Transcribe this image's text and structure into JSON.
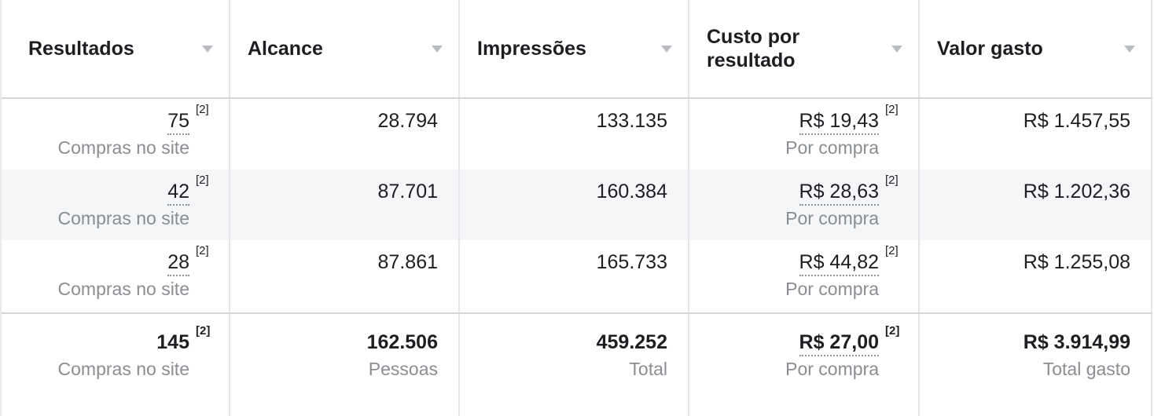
{
  "colors": {
    "text_primary": "#1c1e21",
    "text_secondary": "#8a8d91",
    "row_alt_bg": "#f5f6f7",
    "divider_vertical": "#e3e5e8",
    "divider_horizontal": "#d4d6d9",
    "caret_icon": "#b9bcc1"
  },
  "table": {
    "columns": [
      {
        "label": "Resultados"
      },
      {
        "label": "Alcance"
      },
      {
        "label": "Impressões"
      },
      {
        "label": "Custo por resultado"
      },
      {
        "label": "Valor gasto"
      }
    ],
    "rows": [
      {
        "results_value": "75",
        "results_footnote": "[2]",
        "results_label": "Compras no site",
        "reach": "28.794",
        "impressions": "133.135",
        "cost_value": "R$ 19,43",
        "cost_footnote": "[2]",
        "cost_label": "Por compra",
        "spent": "R$ 1.457,55"
      },
      {
        "results_value": "42",
        "results_footnote": "[2]",
        "results_label": "Compras no site",
        "reach": "87.701",
        "impressions": "160.384",
        "cost_value": "R$ 28,63",
        "cost_footnote": "[2]",
        "cost_label": "Por compra",
        "spent": "R$ 1.202,36"
      },
      {
        "results_value": "28",
        "results_footnote": "[2]",
        "results_label": "Compras no site",
        "reach": "87.861",
        "impressions": "165.733",
        "cost_value": "R$ 44,82",
        "cost_footnote": "[2]",
        "cost_label": "Por compra",
        "spent": "R$ 1.255,08"
      }
    ],
    "totals": {
      "results_value": "145",
      "results_footnote": "[2]",
      "results_label": "Compras no site",
      "reach_value": "162.506",
      "reach_label": "Pessoas",
      "impressions_value": "459.252",
      "impressions_label": "Total",
      "cost_value": "R$ 27,00",
      "cost_footnote": "[2]",
      "cost_label": "Por compra",
      "spent_value": "R$ 3.914,99",
      "spent_label": "Total gasto"
    }
  }
}
